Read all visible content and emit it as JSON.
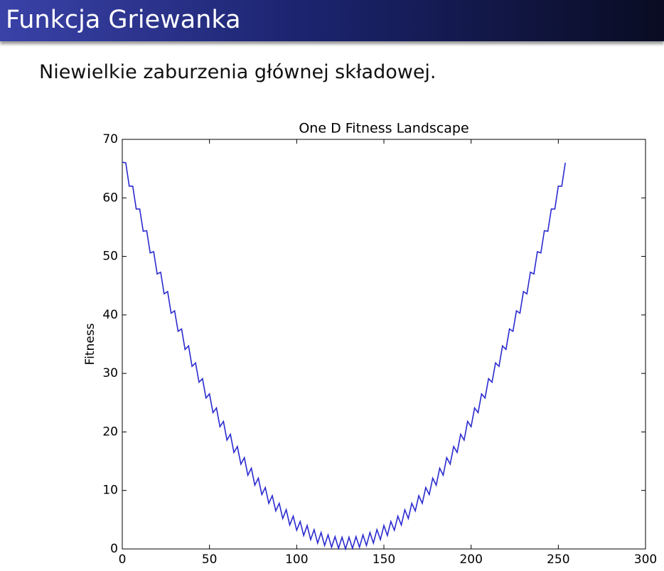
{
  "slide": {
    "title": "Funkcja Griewanka",
    "text": "Niewielkie zaburzenia głównej składowej."
  },
  "chart_data": {
    "type": "line",
    "title": "One D Fitness Landscape",
    "ylabel": "Fitness",
    "x": [
      0,
      2,
      4,
      6,
      8,
      10,
      12,
      14,
      16,
      18,
      20,
      22,
      24,
      26,
      28,
      30,
      32,
      34,
      36,
      38,
      40,
      42,
      44,
      46,
      48,
      50,
      52,
      54,
      56,
      58,
      60,
      62,
      64,
      66,
      68,
      70,
      72,
      74,
      76,
      78,
      80,
      82,
      84,
      86,
      88,
      90,
      92,
      94,
      96,
      98,
      100,
      102,
      104,
      106,
      108,
      110,
      112,
      114,
      116,
      118,
      120,
      122,
      124,
      126,
      128,
      130,
      132,
      134,
      136,
      138,
      140,
      142,
      144,
      146,
      148,
      150,
      152,
      154,
      156,
      158,
      160,
      162,
      164,
      166,
      168,
      170,
      172,
      174,
      176,
      178,
      180,
      182,
      184,
      186,
      188,
      190,
      192,
      194,
      196,
      198,
      200,
      202,
      204,
      206,
      208,
      210,
      212,
      214,
      216,
      218,
      220,
      222,
      224,
      226,
      228,
      230,
      232,
      234,
      236,
      238,
      240,
      242,
      244,
      246,
      248,
      250,
      252,
      254
    ],
    "values": [
      66.1,
      66.0,
      62.0,
      62.0,
      58.1,
      58.1,
      54.3,
      54.4,
      50.6,
      50.8,
      47.0,
      47.3,
      43.6,
      44.0,
      40.3,
      40.7,
      37.2,
      37.6,
      34.1,
      34.7,
      31.2,
      31.8,
      28.5,
      29.1,
      25.8,
      26.5,
      23.3,
      24.1,
      20.9,
      21.8,
      18.6,
      19.6,
      16.5,
      17.5,
      14.5,
      15.6,
      12.6,
      13.8,
      10.9,
      12.1,
      9.3,
      10.5,
      7.8,
      9.1,
      6.5,
      7.8,
      5.2,
      6.7,
      4.1,
      5.6,
      3.2,
      4.7,
      2.3,
      4.0,
      1.6,
      3.3,
      1.0,
      2.8,
      0.6,
      2.4,
      0.3,
      2.1,
      0.1,
      2.0,
      0.0,
      2.0,
      0.1,
      2.1,
      0.3,
      2.4,
      0.6,
      2.8,
      1.0,
      3.3,
      1.6,
      4.0,
      2.3,
      4.7,
      3.2,
      5.6,
      4.1,
      6.7,
      5.2,
      7.8,
      6.5,
      9.1,
      7.8,
      10.5,
      9.3,
      12.1,
      10.9,
      13.8,
      12.6,
      15.6,
      14.5,
      17.5,
      16.5,
      19.6,
      18.6,
      21.8,
      20.9,
      24.1,
      23.3,
      26.5,
      25.8,
      29.1,
      28.5,
      31.8,
      31.2,
      34.7,
      34.1,
      37.6,
      37.2,
      40.7,
      40.3,
      44.0,
      43.6,
      47.3,
      47.0,
      50.8,
      50.6,
      54.4,
      54.3,
      58.1,
      58.1,
      62.0,
      62.0,
      66.0
    ],
    "color": "#2a2ad0",
    "xlim": [
      0,
      300
    ],
    "ylim": [
      0,
      70
    ],
    "xticks": [
      0,
      50,
      100,
      150,
      200,
      250,
      300
    ],
    "yticks": [
      0,
      10,
      20,
      30,
      40,
      50,
      60,
      70
    ],
    "grid": false
  }
}
